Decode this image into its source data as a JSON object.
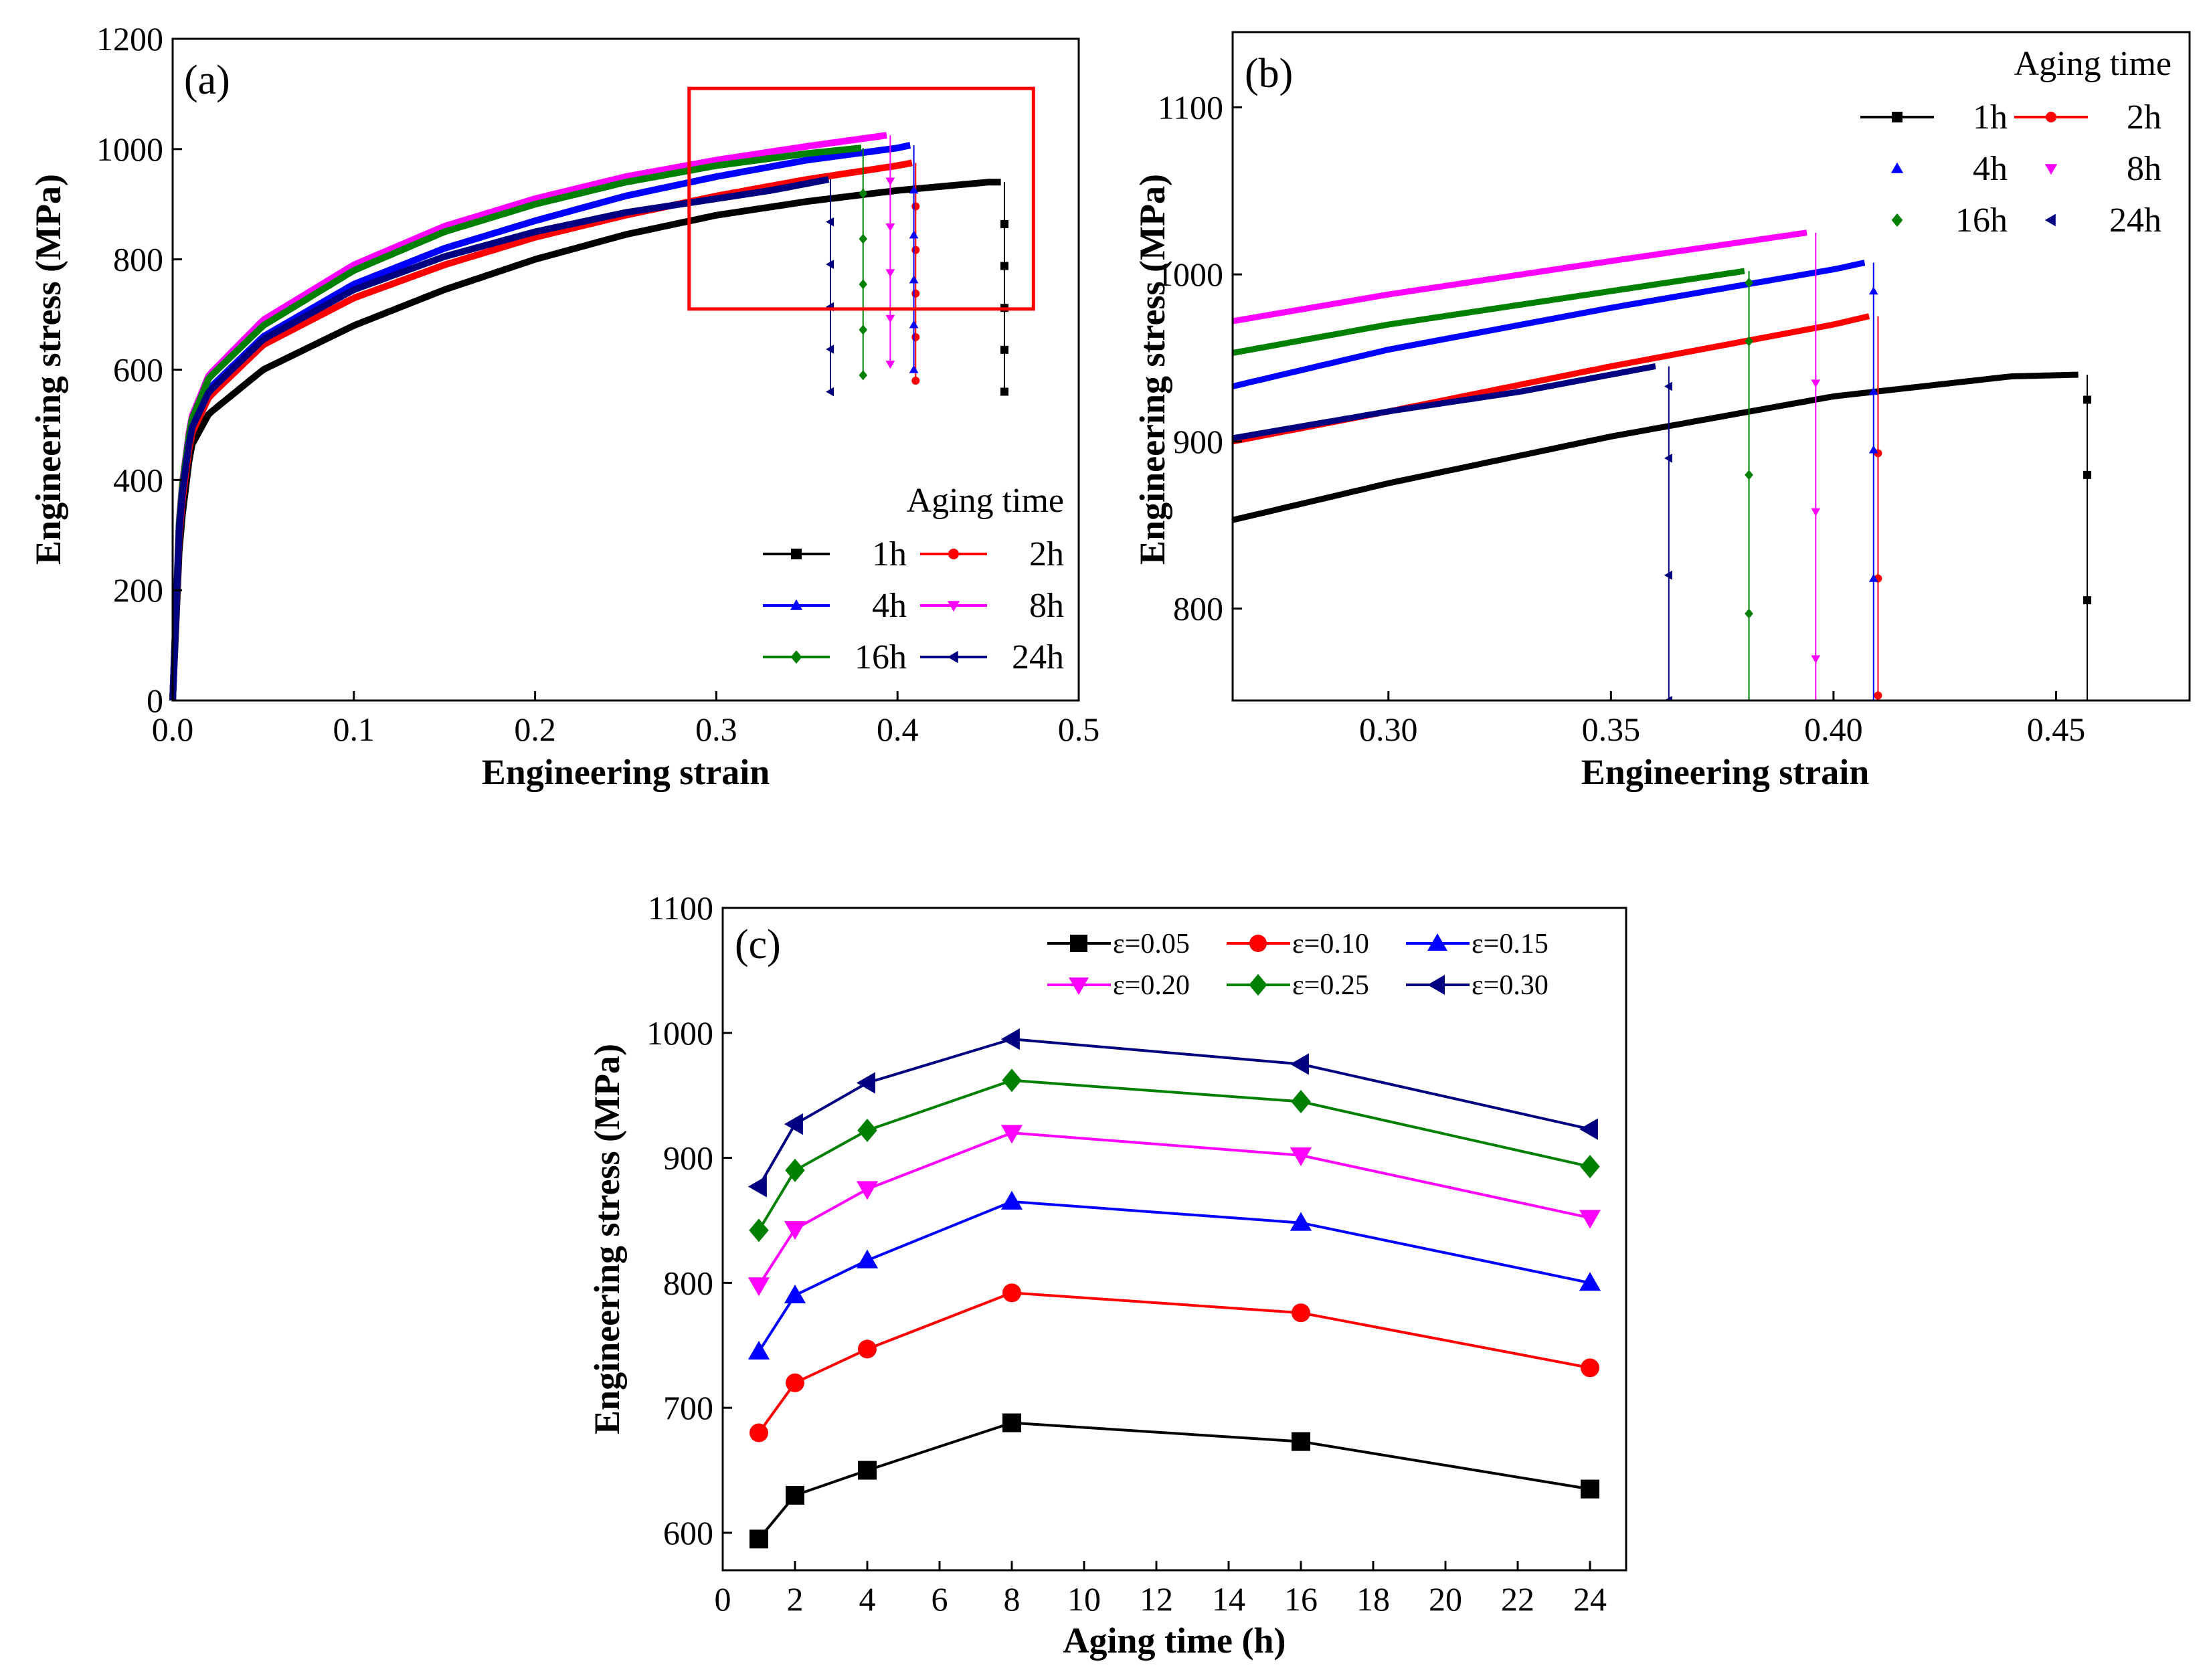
{
  "colors": {
    "1h": "#000000",
    "2h": "#ff0000",
    "4h": "#0000ff",
    "8h": "#ff00ff",
    "16h": "#008000",
    "24h": "#000080",
    "highlight_box": "#ff0000"
  },
  "chart_data": [
    {
      "panel": "(a)",
      "type": "line",
      "xlabel": "Engineering strain",
      "ylabel": "Engineering stress (MPa)",
      "xlim": [
        0,
        0.5
      ],
      "ylim": [
        0,
        1200
      ],
      "xticks": [
        "0.0",
        "0.1",
        "0.2",
        "0.3",
        "0.4",
        "0.5"
      ],
      "yticks": [
        "0",
        "200",
        "400",
        "600",
        "800",
        "1000",
        "1200"
      ],
      "legend_title": "Aging time",
      "legend_position": "bottom-right",
      "highlight_box": {
        "x": [
          0.285,
          0.475
        ],
        "y": [
          710,
          1110
        ]
      },
      "series": [
        {
          "name": "1h",
          "marker": "square",
          "points": [
            [
              0,
              0
            ],
            [
              0.004,
              300
            ],
            [
              0.01,
              460
            ],
            [
              0.02,
              520
            ],
            [
              0.05,
              600
            ],
            [
              0.1,
              680
            ],
            [
              0.15,
              745
            ],
            [
              0.2,
              800
            ],
            [
              0.25,
              845
            ],
            [
              0.3,
              880
            ],
            [
              0.35,
              905
            ],
            [
              0.4,
              925
            ],
            [
              0.45,
              940
            ],
            [
              0.457,
              940
            ]
          ],
          "fracture_strain": 0.459,
          "drop_to": 560
        },
        {
          "name": "2h",
          "marker": "circle",
          "points": [
            [
              0,
              0
            ],
            [
              0.004,
              330
            ],
            [
              0.01,
              480
            ],
            [
              0.02,
              550
            ],
            [
              0.05,
              645
            ],
            [
              0.1,
              730
            ],
            [
              0.15,
              790
            ],
            [
              0.2,
              840
            ],
            [
              0.25,
              880
            ],
            [
              0.3,
              915
            ],
            [
              0.35,
              945
            ],
            [
              0.4,
              970
            ],
            [
              0.408,
              975
            ]
          ],
          "fracture_strain": 0.41,
          "drop_to": 580
        },
        {
          "name": "4h",
          "marker": "triangle-up",
          "points": [
            [
              0,
              0
            ],
            [
              0.004,
              340
            ],
            [
              0.01,
              495
            ],
            [
              0.02,
              565
            ],
            [
              0.05,
              660
            ],
            [
              0.1,
              755
            ],
            [
              0.15,
              820
            ],
            [
              0.2,
              870
            ],
            [
              0.25,
              915
            ],
            [
              0.3,
              950
            ],
            [
              0.35,
              980
            ],
            [
              0.4,
              1002
            ],
            [
              0.407,
              1007
            ]
          ],
          "fracture_strain": 0.409,
          "drop_to": 600
        },
        {
          "name": "8h",
          "marker": "triangle-down",
          "points": [
            [
              0,
              0
            ],
            [
              0.004,
              360
            ],
            [
              0.01,
              510
            ],
            [
              0.02,
              590
            ],
            [
              0.05,
              690
            ],
            [
              0.1,
              790
            ],
            [
              0.15,
              860
            ],
            [
              0.2,
              910
            ],
            [
              0.25,
              950
            ],
            [
              0.3,
              980
            ],
            [
              0.35,
              1005
            ],
            [
              0.394,
              1025
            ]
          ],
          "fracture_strain": 0.396,
          "drop_to": 610
        },
        {
          "name": "16h",
          "marker": "diamond",
          "points": [
            [
              0,
              0
            ],
            [
              0.004,
              355
            ],
            [
              0.01,
              505
            ],
            [
              0.02,
              585
            ],
            [
              0.05,
              680
            ],
            [
              0.1,
              780
            ],
            [
              0.15,
              850
            ],
            [
              0.2,
              900
            ],
            [
              0.25,
              940
            ],
            [
              0.3,
              970
            ],
            [
              0.35,
              992
            ],
            [
              0.38,
              1002
            ]
          ],
          "fracture_strain": 0.381,
          "drop_to": 590
        },
        {
          "name": "24h",
          "marker": "triangle-left",
          "points": [
            [
              0,
              0
            ],
            [
              0.004,
              345
            ],
            [
              0.01,
              490
            ],
            [
              0.02,
              560
            ],
            [
              0.05,
              655
            ],
            [
              0.1,
              745
            ],
            [
              0.15,
              805
            ],
            [
              0.2,
              850
            ],
            [
              0.25,
              885
            ],
            [
              0.3,
              910
            ],
            [
              0.33,
              925
            ],
            [
              0.362,
              945
            ]
          ],
          "fracture_strain": 0.363,
          "drop_to": 560
        }
      ]
    },
    {
      "panel": "(b)",
      "type": "line",
      "xlabel": "Engineering strain",
      "ylabel": "Engineering stress (MPa)",
      "xlim": [
        0.265,
        0.48
      ],
      "ylim": [
        745,
        1145
      ],
      "xticks": [
        "0.30",
        "0.35",
        "0.40",
        "0.45"
      ],
      "xtick_values": [
        0.3,
        0.35,
        0.4,
        0.45
      ],
      "yticks": [
        "800",
        "900",
        "1000",
        "1100"
      ],
      "ytick_values": [
        800,
        900,
        1000,
        1100
      ],
      "legend_title": "Aging time",
      "legend_position": "top-right",
      "series": [
        {
          "name": "1h",
          "marker": "square",
          "points": [
            [
              0.265,
              853
            ],
            [
              0.3,
              875
            ],
            [
              0.35,
              903
            ],
            [
              0.4,
              927
            ],
            [
              0.44,
              939
            ],
            [
              0.455,
              940
            ]
          ],
          "fracture_strain": 0.457,
          "drop_points": [
            925,
            880,
            805
          ]
        },
        {
          "name": "2h",
          "marker": "circle",
          "points": [
            [
              0.265,
              900
            ],
            [
              0.3,
              918
            ],
            [
              0.35,
              945
            ],
            [
              0.4,
              970
            ],
            [
              0.408,
              975
            ]
          ],
          "fracture_strain": 0.41,
          "drop_points": [
            893,
            818,
            748
          ]
        },
        {
          "name": "4h",
          "marker": "triangle-up",
          "points": [
            [
              0.265,
              933
            ],
            [
              0.3,
              955
            ],
            [
              0.35,
              980
            ],
            [
              0.4,
              1003
            ],
            [
              0.407,
              1007
            ]
          ],
          "fracture_strain": 0.409,
          "drop_points": [
            990,
            930,
            895,
            818,
            743
          ]
        },
        {
          "name": "8h",
          "marker": "triangle-down",
          "points": [
            [
              0.265,
              972
            ],
            [
              0.3,
              988
            ],
            [
              0.35,
              1008
            ],
            [
              0.394,
              1025
            ]
          ],
          "fracture_strain": 0.396,
          "drop_points": [
            935,
            858,
            770
          ]
        },
        {
          "name": "16h",
          "marker": "diamond",
          "points": [
            [
              0.265,
              953
            ],
            [
              0.3,
              970
            ],
            [
              0.35,
              990
            ],
            [
              0.38,
              1002
            ]
          ],
          "fracture_strain": 0.381,
          "drop_points": [
            995,
            960,
            880,
            797
          ]
        },
        {
          "name": "24h",
          "marker": "triangle-left",
          "points": [
            [
              0.265,
              902
            ],
            [
              0.3,
              918
            ],
            [
              0.33,
              930
            ],
            [
              0.36,
              945
            ]
          ],
          "fracture_strain": 0.363,
          "drop_points": [
            933,
            890,
            820,
            745
          ]
        }
      ]
    },
    {
      "panel": "(c)",
      "type": "line",
      "xlabel": "Aging time (h)",
      "ylabel": "Engineering stress (MPa)",
      "xlim": [
        0,
        25
      ],
      "ylim": [
        570,
        1100
      ],
      "xticks": [
        "0",
        "2",
        "4",
        "6",
        "8",
        "10",
        "12",
        "14",
        "16",
        "18",
        "20",
        "22",
        "24"
      ],
      "xtick_values": [
        0,
        2,
        4,
        6,
        8,
        10,
        12,
        14,
        16,
        18,
        20,
        22,
        24
      ],
      "yticks": [
        "600",
        "700",
        "800",
        "900",
        "1000",
        "1100"
      ],
      "ytick_values": [
        600,
        700,
        800,
        900,
        1000,
        1100
      ],
      "legend_position": "top-right",
      "x": [
        1,
        2,
        4,
        8,
        16,
        24
      ],
      "series": [
        {
          "name": "ε=0.05",
          "color": "#000000",
          "marker": "square",
          "values": [
            595,
            630,
            650,
            688,
            673,
            635
          ]
        },
        {
          "name": "ε=0.10",
          "color": "#ff0000",
          "marker": "circle",
          "values": [
            680,
            720,
            747,
            792,
            776,
            732
          ]
        },
        {
          "name": "ε=0.15",
          "color": "#0000ff",
          "marker": "triangle-up",
          "values": [
            745,
            790,
            818,
            865,
            848,
            800
          ]
        },
        {
          "name": "ε=0.20",
          "color": "#ff00ff",
          "marker": "triangle-down",
          "values": [
            798,
            843,
            875,
            920,
            902,
            852
          ]
        },
        {
          "name": "ε=0.25",
          "color": "#008000",
          "marker": "diamond",
          "values": [
            842,
            890,
            922,
            962,
            945,
            893
          ]
        },
        {
          "name": "ε=0.30",
          "color": "#000080",
          "marker": "triangle-left",
          "values": [
            877,
            927,
            960,
            995,
            975,
            923
          ]
        }
      ]
    }
  ]
}
